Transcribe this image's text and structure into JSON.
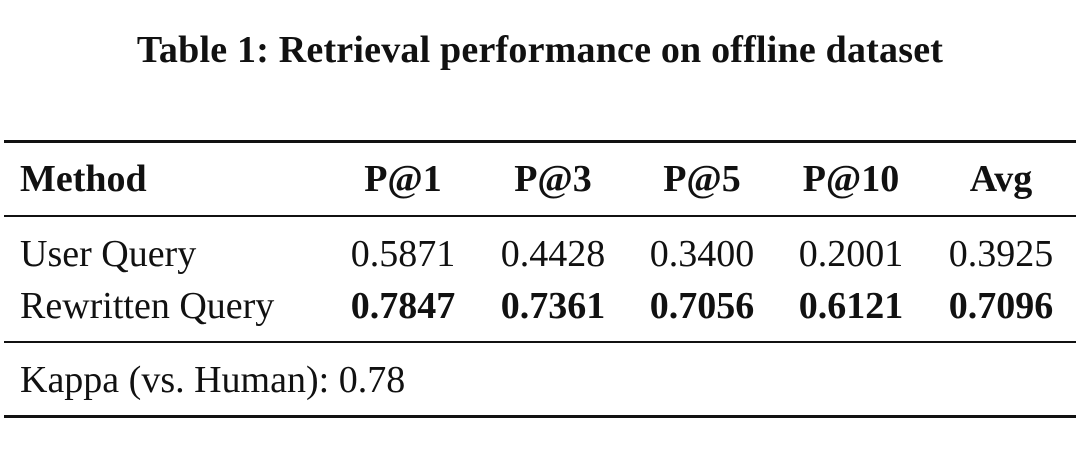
{
  "caption": "Table 1: Retrieval performance on offline dataset",
  "table": {
    "columns": [
      "Method",
      "P@1",
      "P@3",
      "P@5",
      "P@10",
      "Avg"
    ],
    "rows": [
      {
        "method": "User Query",
        "values": [
          "0.5871",
          "0.4428",
          "0.3400",
          "0.2001",
          "0.3925"
        ],
        "bold": false
      },
      {
        "method": "Rewritten Query",
        "values": [
          "0.7847",
          "0.7361",
          "0.7056",
          "0.6121",
          "0.7096"
        ],
        "bold": true
      }
    ],
    "footer": "Kappa (vs. Human): 0.78"
  }
}
